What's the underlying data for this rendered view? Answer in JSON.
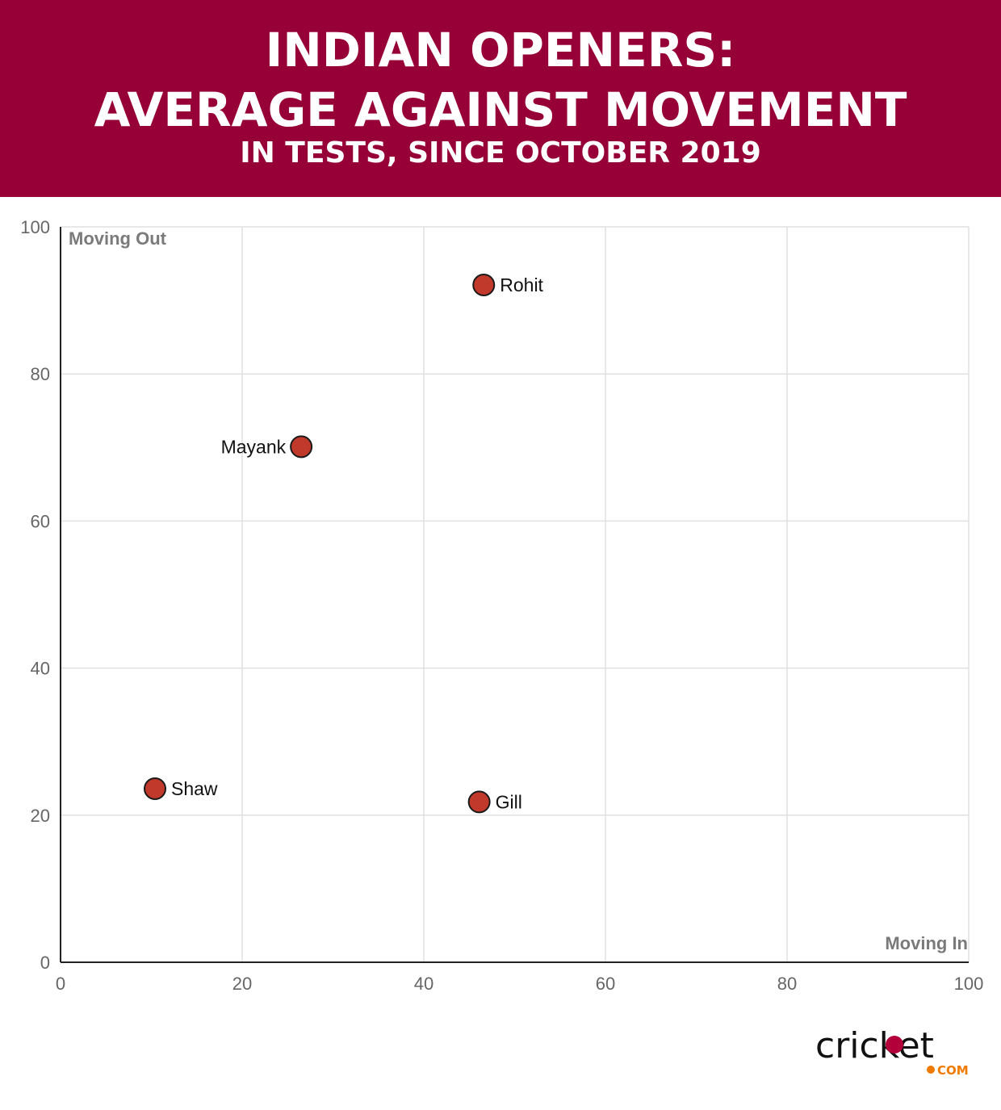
{
  "header": {
    "title_line1": "INDIAN OPENERS:",
    "title_line2": "AVERAGE AGAINST MOVEMENT",
    "subtitle": "IN TESTS, SINCE OCTOBER 2019"
  },
  "colors": {
    "header_bg": "#960036",
    "point_fill": "#c0392b",
    "point_stroke": "#1a1a1a",
    "grid": "#e0e0e0",
    "axis": "#222222",
    "logo_accent": "#f07a00",
    "logo_ball": "#b3003a"
  },
  "chart_data": {
    "type": "scatter",
    "title": "INDIAN OPENERS: AVERAGE AGAINST MOVEMENT",
    "subtitle": "IN TESTS, SINCE OCTOBER 2019",
    "xlabel": "Moving In",
    "ylabel": "Moving Out",
    "xlim": [
      0,
      100
    ],
    "ylim": [
      0,
      100
    ],
    "xticks": [
      0,
      20,
      40,
      60,
      80,
      100
    ],
    "yticks": [
      0,
      20,
      40,
      60,
      80,
      100
    ],
    "grid": true,
    "points": [
      {
        "label": "Rohit",
        "x": 46.6,
        "y": 92.1,
        "label_side": "right"
      },
      {
        "label": "Mayank",
        "x": 26.5,
        "y": 70.1,
        "label_side": "left"
      },
      {
        "label": "Shaw",
        "x": 10.4,
        "y": 23.6,
        "label_side": "right"
      },
      {
        "label": "Gill",
        "x": 46.1,
        "y": 21.8,
        "label_side": "right"
      }
    ]
  },
  "logo": {
    "text": "cricket",
    "suffix": "COM"
  }
}
